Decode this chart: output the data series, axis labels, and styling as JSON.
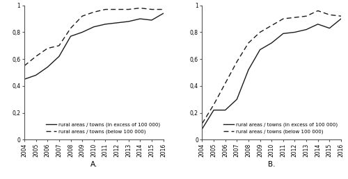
{
  "years": [
    2004,
    2005,
    2006,
    2007,
    2008,
    2009,
    2010,
    2011,
    2012,
    2013,
    2014,
    2015,
    2016
  ],
  "A_solid": [
    0.45,
    0.48,
    0.54,
    0.62,
    0.77,
    0.8,
    0.84,
    0.86,
    0.87,
    0.88,
    0.9,
    0.89,
    0.94
  ],
  "A_dashed": [
    0.55,
    0.62,
    0.68,
    0.7,
    0.83,
    0.92,
    0.95,
    0.97,
    0.97,
    0.97,
    0.98,
    0.97,
    0.97
  ],
  "B_solid": [
    0.08,
    0.22,
    0.22,
    0.3,
    0.52,
    0.67,
    0.72,
    0.79,
    0.8,
    0.82,
    0.86,
    0.83,
    0.9
  ],
  "B_dashed": [
    0.12,
    0.26,
    0.42,
    0.58,
    0.72,
    0.8,
    0.85,
    0.9,
    0.91,
    0.92,
    0.96,
    0.93,
    0.92
  ],
  "legend_solid": "rural areas / towns (in excess of 100 000)",
  "legend_dashed": "rural areas / towns (below 100 000)",
  "label_A": "A.",
  "label_B": "B.",
  "ylim": [
    0,
    1
  ],
  "yticks": [
    0,
    0.2,
    0.4,
    0.6,
    0.8,
    1.0
  ],
  "ytick_labels": [
    "0",
    "0,2",
    "0,4",
    "0,6",
    "0,8",
    "1"
  ],
  "line_color": "#1a1a1a",
  "background_color": "#ffffff",
  "linewidth": 1.0,
  "legend_fontsize": 5.0,
  "tick_fontsize": 5.5,
  "label_fontsize": 7.5
}
